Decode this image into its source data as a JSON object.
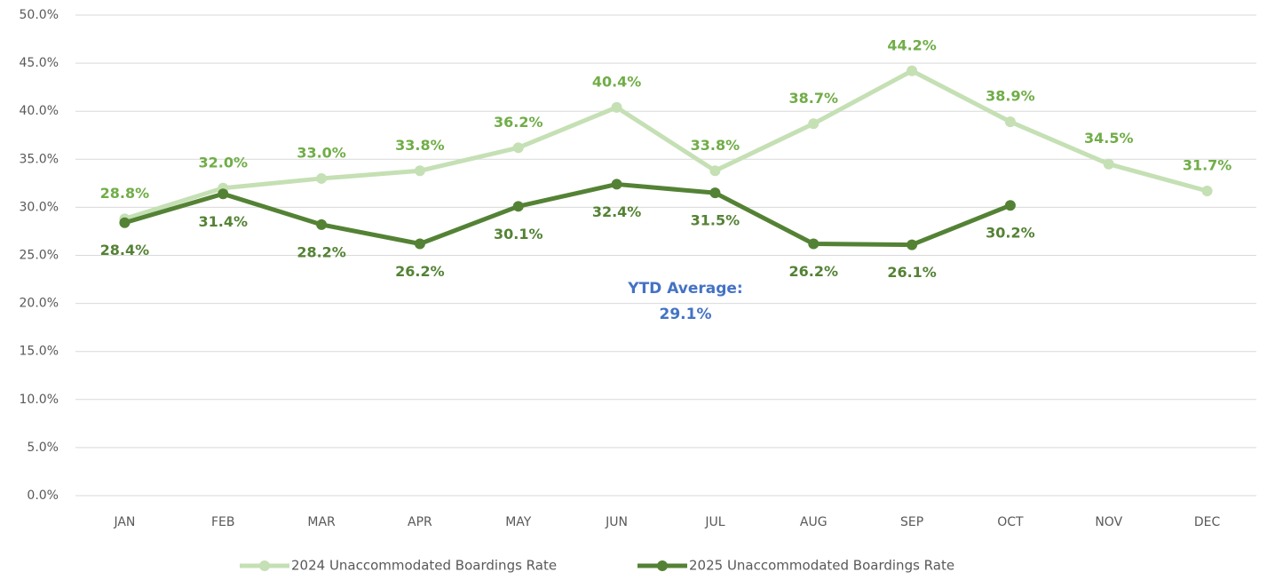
{
  "chart_data": {
    "type": "line",
    "categories": [
      "JAN",
      "FEB",
      "MAR",
      "APR",
      "MAY",
      "JUN",
      "JUL",
      "AUG",
      "SEP",
      "OCT",
      "NOV",
      "DEC"
    ],
    "series": [
      {
        "name": "2024 Unaccommodated Boardings Rate",
        "color": "#c5e0b4",
        "label_color": "#70ad47",
        "values": [
          28.8,
          32.0,
          33.0,
          33.8,
          36.2,
          40.4,
          33.8,
          38.7,
          44.2,
          38.9,
          34.5,
          31.7
        ],
        "value_labels": [
          "28.8%",
          "32.0%",
          "33.0%",
          "33.8%",
          "36.2%",
          "40.4%",
          "33.8%",
          "38.7%",
          "44.2%",
          "38.9%",
          "34.5%",
          "31.7%"
        ]
      },
      {
        "name": "2025 Unaccommodated Boardings Rate",
        "color": "#548235",
        "label_color": "#548235",
        "values": [
          28.4,
          31.4,
          28.2,
          26.2,
          30.1,
          32.4,
          31.5,
          26.2,
          26.1,
          30.2,
          null,
          null
        ],
        "value_labels": [
          "28.4%",
          "31.4%",
          "28.2%",
          "26.2%",
          "30.1%",
          "32.4%",
          "31.5%",
          "26.2%",
          "26.1%",
          "30.2%",
          null,
          null
        ]
      }
    ],
    "ylim": [
      0,
      50
    ],
    "yticks": [
      {
        "value": 0,
        "label": "0.0%"
      },
      {
        "value": 5,
        "label": "5.0%"
      },
      {
        "value": 10,
        "label": "10.0%"
      },
      {
        "value": 15,
        "label": "15.0%"
      },
      {
        "value": 20,
        "label": "20.0%"
      },
      {
        "value": 25,
        "label": "25.0%"
      },
      {
        "value": 30,
        "label": "30.0%"
      },
      {
        "value": 35,
        "label": "35.0%"
      },
      {
        "value": 40,
        "label": "40.0%"
      },
      {
        "value": 45,
        "label": "45.0%"
      },
      {
        "value": 50,
        "label": "50.0%"
      }
    ],
    "grid": true,
    "legend": "bottom",
    "annotations": [
      "YTD Average:",
      "29.1%"
    ]
  }
}
